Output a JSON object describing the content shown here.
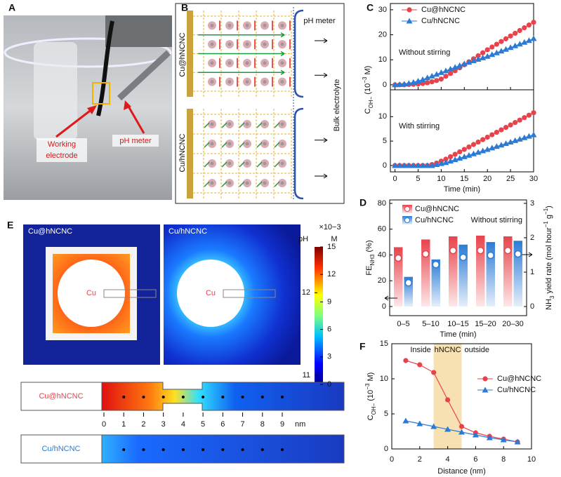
{
  "panel_labels": [
    "A",
    "B",
    "C",
    "D",
    "E",
    "F"
  ],
  "photo": {
    "electrode": [
      "Working",
      "electrode"
    ],
    "probe": "pH meter"
  },
  "schematic": {
    "samples": [
      "Cu@hNCNC",
      "Cu/hNCNC"
    ],
    "probe": "pH meter",
    "bulk": "Bulk electrolyte"
  },
  "simulation": {
    "samples": [
      "Cu@hNCNC",
      "Cu/hNCNC"
    ],
    "core": [
      "Cu",
      "Cu"
    ],
    "colorbar": {
      "exponent": "×10−3",
      "title_left": "pH",
      "title_right": "M",
      "lim": [
        0,
        15
      ],
      "ticks": [
        0,
        3,
        6,
        9,
        12,
        15
      ],
      "ph_ticks": [
        {
          "value": 10,
          "label": "12"
        },
        {
          "value": 1,
          "label": "11"
        }
      ]
    },
    "profiles": {
      "samples": [
        "Cu@hNCNC",
        "Cu/hNCNC"
      ],
      "lim": [
        0,
        9
      ],
      "ticks": [
        0,
        1,
        2,
        3,
        4,
        5,
        6,
        7,
        8,
        9
      ],
      "unit": "nm"
    }
  },
  "chart_data": [
    {
      "type": "line",
      "x": [
        0,
        1,
        2,
        3,
        4,
        5,
        6,
        7,
        8,
        9,
        10,
        11,
        12,
        13,
        14,
        15,
        16,
        17,
        18,
        19,
        20,
        21,
        22,
        23,
        24,
        25,
        26,
        27,
        28,
        29,
        30
      ],
      "xlim": [
        -1,
        30
      ],
      "xticks": [
        0,
        5,
        10,
        15,
        20,
        25,
        30
      ],
      "xlabel": "Time (min)",
      "ylabel": [
        {
          "text": "C",
          "shift": "none"
        },
        {
          "text": "OH−",
          "shift": "sub"
        },
        {
          "text": " (10",
          "shift": "none"
        },
        {
          "text": "−3",
          "shift": "super"
        },
        {
          "text": " M)",
          "shift": "none"
        }
      ],
      "legend": [
        {
          "name": "Cu@hNCNC",
          "color": "#e8434b",
          "marker": "circle"
        },
        {
          "name": "Cu/hNCNC",
          "color": "#2b7bd6",
          "marker": "triangle"
        }
      ],
      "subplots": [
        {
          "annotation": "Without stirring",
          "ylim": [
            -2,
            32.5
          ],
          "yticks": [
            0,
            10,
            20,
            30
          ],
          "series": [
            {
              "values": [
                0,
                0,
                0,
                0.1,
                0.2,
                0.3,
                0.5,
                0.8,
                1.2,
                1.7,
                2.3,
                3.4,
                4.5,
                5.6,
                6.8,
                8,
                9.2,
                10.4,
                11.6,
                12.8,
                14,
                15.1,
                16.2,
                17.3,
                18.4,
                19.5,
                20.6,
                21.7,
                22.8,
                23.9,
                25
              ]
            },
            {
              "values": [
                0,
                0.1,
                0.3,
                0.6,
                1,
                1.5,
                2.1,
                2.8,
                3.5,
                4.2,
                4.9,
                5.6,
                6.3,
                7,
                7.7,
                8.4,
                9,
                9.6,
                10.2,
                10.8,
                11.4,
                12.1,
                12.8,
                13.5,
                14.2,
                14.9,
                15.6,
                16.3,
                17,
                17.7,
                18.5
              ]
            }
          ]
        },
        {
          "annotation": "With stirring",
          "ylim": [
            -1.3,
            15.5
          ],
          "yticks": [
            0,
            5,
            10
          ],
          "series": [
            {
              "values": [
                0,
                0,
                0,
                0,
                0,
                0,
                0,
                0,
                0.2,
                0.5,
                0.9,
                1.3,
                1.8,
                2.3,
                2.8,
                3.3,
                3.8,
                4.3,
                4.8,
                5.3,
                5.8,
                6.3,
                6.8,
                7.3,
                7.8,
                8.3,
                8.8,
                9.3,
                9.8,
                10.3,
                10.8
              ]
            },
            {
              "values": [
                0,
                0,
                0,
                0,
                0,
                0,
                0,
                0,
                0,
                0.2,
                0.4,
                0.6,
                0.9,
                1.2,
                1.5,
                1.8,
                2.1,
                2.4,
                2.7,
                3,
                3.3,
                3.6,
                3.9,
                4.2,
                4.5,
                4.8,
                5.1,
                5.4,
                5.7,
                6,
                6.3
              ]
            }
          ]
        }
      ]
    },
    {
      "type": "bar",
      "categories": [
        "0–5",
        "5–10",
        "10–15",
        "15–20",
        "20–30"
      ],
      "xlabel": "Time (min)",
      "ylabel": [
        {
          "text": "FE",
          "shift": "none"
        },
        {
          "text": "NH3",
          "shift": "sub"
        },
        {
          "text": " (%)",
          "shift": "none"
        }
      ],
      "y2label": [
        {
          "text": "NH",
          "shift": "none"
        },
        {
          "text": "3",
          "shift": "sub"
        },
        {
          "text": " yield rate (mol hour",
          "shift": "none"
        },
        {
          "text": "−1",
          "shift": "super"
        },
        {
          "text": " g",
          "shift": "none"
        },
        {
          "text": "−1",
          "shift": "super"
        },
        {
          "text": ")",
          "shift": "none"
        }
      ],
      "ylim": [
        -7.1,
        82.7
      ],
      "yticks": [
        0,
        20,
        40,
        60,
        80
      ],
      "y2lim": [
        -0.265,
        3.1
      ],
      "y2ticks": [
        0,
        1,
        2,
        3
      ],
      "annotation": "Without stirring",
      "series": [
        {
          "name": "Cu@hNCNC",
          "color": "#e8434b",
          "values": [
            46,
            52,
            54.4,
            55,
            54.4
          ]
        },
        {
          "name": "Cu/hNCNC",
          "color": "#2b7bd6",
          "values": [
            23,
            36.5,
            48,
            50,
            51
          ]
        },
        {
          "color": "#e8434b",
          "axis": "y2",
          "values": [
            1.41,
            1.53,
            1.63,
            1.63,
            1.63
          ]
        },
        {
          "color": "#2b7bd6",
          "axis": "y2",
          "values": [
            0.69,
            1.22,
            1.43,
            1.49,
            1.53
          ]
        }
      ]
    },
    {
      "type": "line",
      "x": [
        1,
        2,
        3,
        4,
        5,
        6,
        7,
        8,
        9
      ],
      "xlim": [
        0,
        10
      ],
      "xticks": [
        0,
        2,
        4,
        6,
        8,
        10
      ],
      "ylim": [
        0,
        15
      ],
      "yticks": [
        0,
        5,
        10,
        15
      ],
      "xlabel": "Distance (nm)",
      "ylabel": [
        {
          "text": "C",
          "shift": "none"
        },
        {
          "text": "OH−",
          "shift": "sub"
        },
        {
          "text": " (10",
          "shift": "none"
        },
        {
          "text": "−3",
          "shift": "super"
        },
        {
          "text": " M)",
          "shift": "none"
        }
      ],
      "shade": [
        3,
        5
      ],
      "shade_color": "#f7e1b3",
      "region_labels": [
        "Inside",
        "hNCNC",
        "outside"
      ],
      "series": [
        {
          "name": "Cu@hNCNC",
          "color": "#e8434b",
          "marker": "circle",
          "values": [
            12.6,
            12,
            10.9,
            7,
            3.2,
            2.3,
            1.8,
            1.4,
            1
          ]
        },
        {
          "name": "Cu/hNCNC",
          "color": "#2b7bd6",
          "marker": "triangle",
          "values": [
            4,
            3.6,
            3.2,
            2.8,
            2.4,
            2,
            1.6,
            1.3,
            1
          ]
        }
      ]
    }
  ]
}
